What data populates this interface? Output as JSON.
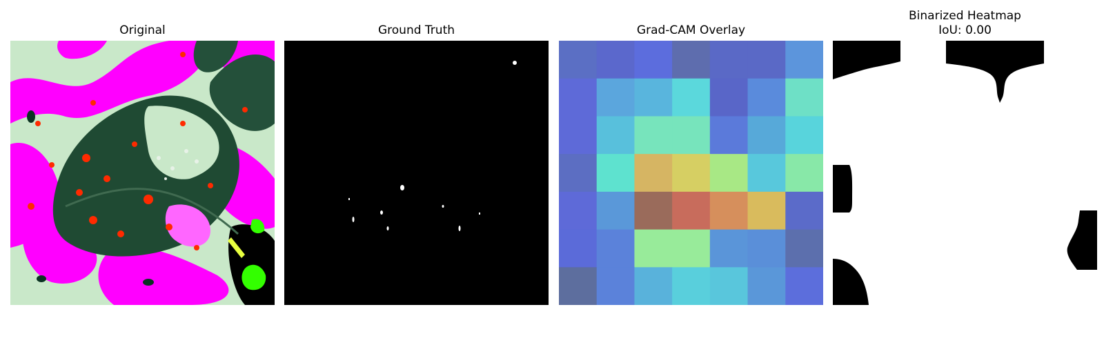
{
  "figure": {
    "panels": [
      {
        "id": "original",
        "title": "Original"
      },
      {
        "id": "ground-truth",
        "title": "Ground Truth"
      },
      {
        "id": "gradcam-overlay",
        "title": "Grad-CAM Overlay"
      },
      {
        "id": "binarized-heatmap",
        "title": "Binarized Heatmap",
        "subtitle": "IoU: 0.00"
      }
    ]
  },
  "colors": {
    "magenta": "#ff00ff",
    "pale_green": "#c9e8c9",
    "dark_leaf": "#1f4a33",
    "red_speckle": "#ff2a00",
    "black": "#000000",
    "white": "#ffffff"
  },
  "gradcam": {
    "grid_rows": 7,
    "grid_cols": 7,
    "cell_colors": [
      [
        "#5b6fc4",
        "#5b68cc",
        "#5c6ddd",
        "#5e6dae",
        "#5a69c6",
        "#5a69c6",
        "#5c95dc"
      ],
      [
        "#5e6ad8",
        "#5ba6dd",
        "#59b5dd",
        "#5bd8dc",
        "#5966c8",
        "#5a8bdc",
        "#6ee0c6"
      ],
      [
        "#5e6ad8",
        "#58c0dc",
        "#77e4bc",
        "#77e4bc",
        "#5b7ada",
        "#57a9d9",
        "#58d4dc"
      ],
      [
        "#5c6ec2",
        "#5ee2cf",
        "#d6b563",
        "#d6cf63",
        "#a8e885",
        "#58c8dc",
        "#88e8a8"
      ],
      [
        "#5e6ad8",
        "#5a98d9",
        "#9a6b5b",
        "#c86c5c",
        "#d68f5c",
        "#d9bb5d",
        "#5b6bc9"
      ],
      [
        "#5b6bd9",
        "#5b82da",
        "#98eb9a",
        "#98eb9a",
        "#5a95d9",
        "#5a8fd9",
        "#5c6fad"
      ],
      [
        "#5d6e9e",
        "#5b82da",
        "#59b2db",
        "#59cfdc",
        "#59c6dc",
        "#5a97d9",
        "#5c6edc"
      ]
    ]
  }
}
